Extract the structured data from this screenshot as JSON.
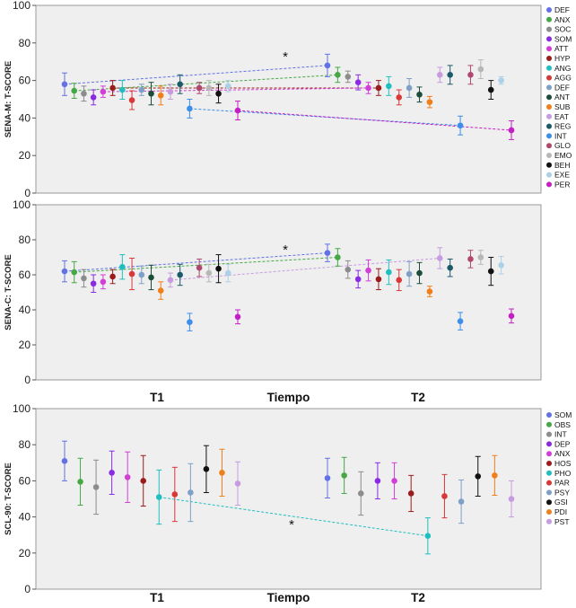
{
  "chart_data": [
    {
      "type": "scatter",
      "ylabel": "SENA-M: T-SCORE",
      "xlabel": "Tiempo",
      "categories": [
        "T1",
        "T2"
      ],
      "ylim": [
        0,
        100
      ],
      "yticks": [
        0,
        20,
        40,
        60,
        80,
        100
      ],
      "annotation": "*",
      "legend": [
        "DEF",
        "ANX",
        "SOC",
        "SOM",
        "ATT",
        "HYP",
        "ANG",
        "AGG",
        "DEF",
        "ANT",
        "SUB",
        "EAT",
        "REG",
        "INT",
        "GLO",
        "EMO",
        "BEH",
        "EXE",
        "PER"
      ],
      "colors": [
        "#6272e6",
        "#45a845",
        "#8c8c8c",
        "#8a2be2",
        "#d23fd6",
        "#9b1c1c",
        "#1fbfbf",
        "#d93838",
        "#7ea0c6",
        "#1c4d3a",
        "#ef7f1a",
        "#c89be0",
        "#1c5a6a",
        "#3d8ee8",
        "#b0476e",
        "#b7b7b7",
        "#111111",
        "#acd0e8",
        "#c41fc4"
      ],
      "t1": [
        {
          "m": 58,
          "e": 6
        },
        {
          "m": 54.5,
          "e": 4
        },
        {
          "m": 53,
          "e": 4
        },
        {
          "m": 51,
          "e": 4
        },
        {
          "m": 54,
          "e": 3
        },
        {
          "m": 56,
          "e": 4
        },
        {
          "m": 55,
          "e": 5
        },
        {
          "m": 49.5,
          "e": 5
        },
        {
          "m": 55,
          "e": 3
        },
        {
          "m": 53,
          "e": 6
        },
        {
          "m": 52,
          "e": 5
        },
        {
          "m": 54,
          "e": 4
        },
        {
          "m": 58,
          "e": 5
        },
        {
          "m": 45,
          "e": 5
        },
        {
          "m": 56,
          "e": 3
        },
        {
          "m": 56,
          "e": 4
        },
        {
          "m": 53,
          "e": 5
        },
        {
          "m": 57,
          "e": 3
        },
        {
          "m": 44,
          "e": 5
        }
      ],
      "t2": [
        {
          "m": 68,
          "e": 6
        },
        {
          "m": 63,
          "e": 4
        },
        {
          "m": 62,
          "e": 3
        },
        {
          "m": 59,
          "e": 4
        },
        {
          "m": 56,
          "e": 3
        },
        {
          "m": 56,
          "e": 4
        },
        {
          "m": 57,
          "e": 5
        },
        {
          "m": 51,
          "e": 4
        },
        {
          "m": 56,
          "e": 5
        },
        {
          "m": 52.5,
          "e": 4
        },
        {
          "m": 48.5,
          "e": 3
        },
        {
          "m": 63,
          "e": 4
        },
        {
          "m": 63,
          "e": 5
        },
        {
          "m": 36,
          "e": 5
        },
        {
          "m": 63,
          "e": 5
        },
        {
          "m": 66,
          "e": 5
        },
        {
          "m": 55,
          "e": 5
        },
        {
          "m": 60,
          "e": 2
        },
        {
          "m": 33.5,
          "e": 5
        }
      ],
      "dashed": [
        0,
        1,
        5,
        4,
        13,
        18
      ]
    },
    {
      "type": "scatter",
      "ylabel": "SENA-C: T-SCORE",
      "xlabel": "Tiempo",
      "categories": [
        "T1",
        "T2"
      ],
      "ylim": [
        0,
        100
      ],
      "yticks": [
        0,
        20,
        40,
        60,
        80,
        100
      ],
      "annotation": "*",
      "colors": [
        "#6272e6",
        "#45a845",
        "#8c8c8c",
        "#8a2be2",
        "#d23fd6",
        "#9b1c1c",
        "#1fbfbf",
        "#d93838",
        "#7ea0c6",
        "#1c4d3a",
        "#ef7f1a",
        "#c89be0",
        "#1c5a6a",
        "#3d8ee8",
        "#b0476e",
        "#b7b7b7",
        "#111111",
        "#acd0e8",
        "#c41fc4"
      ],
      "t1": [
        {
          "m": 62,
          "e": 6
        },
        {
          "m": 61.5,
          "e": 6
        },
        {
          "m": 58,
          "e": 5
        },
        {
          "m": 55,
          "e": 5
        },
        {
          "m": 56,
          "e": 4
        },
        {
          "m": 59,
          "e": 4
        },
        {
          "m": 64.5,
          "e": 7
        },
        {
          "m": 60.5,
          "e": 9
        },
        {
          "m": 60,
          "e": 5
        },
        {
          "m": 58.5,
          "e": 7
        },
        {
          "m": 51,
          "e": 5
        },
        {
          "m": 57,
          "e": 4
        },
        {
          "m": 60,
          "e": 6
        },
        {
          "m": 33,
          "e": 5
        },
        {
          "m": 64,
          "e": 5
        },
        {
          "m": 61,
          "e": 5
        },
        {
          "m": 63.5,
          "e": 8
        },
        {
          "m": 61,
          "e": 5
        },
        {
          "m": 36,
          "e": 4
        }
      ],
      "t2": [
        {
          "m": 72.5,
          "e": 5
        },
        {
          "m": 70,
          "e": 5
        },
        {
          "m": 63,
          "e": 5
        },
        {
          "m": 57.5,
          "e": 5
        },
        {
          "m": 62.5,
          "e": 6
        },
        {
          "m": 57.5,
          "e": 6
        },
        {
          "m": 61.5,
          "e": 7
        },
        {
          "m": 57,
          "e": 6
        },
        {
          "m": 60.5,
          "e": 7
        },
        {
          "m": 61,
          "e": 6
        },
        {
          "m": 50.5,
          "e": 3
        },
        {
          "m": 69.5,
          "e": 6
        },
        {
          "m": 64,
          "e": 5
        },
        {
          "m": 33.5,
          "e": 5
        },
        {
          "m": 69,
          "e": 5
        },
        {
          "m": 70,
          "e": 4
        },
        {
          "m": 62,
          "e": 8
        },
        {
          "m": 65.5,
          "e": 5
        },
        {
          "m": 36.5,
          "e": 4
        }
      ],
      "dashed": [
        0,
        1,
        11
      ]
    },
    {
      "type": "scatter",
      "ylabel": "SCL-90: T-SCORE",
      "xlabel": "Tiempo",
      "categories": [
        "T1",
        "T2"
      ],
      "ylim": [
        0,
        100
      ],
      "yticks": [
        0,
        20,
        40,
        60,
        80,
        100
      ],
      "annotation": "*",
      "legend": [
        "SOM",
        "OBS",
        "INT",
        "DEP",
        "ANX",
        "HOS",
        "PHO",
        "PAR",
        "PSY",
        "GSI",
        "PDI",
        "PST"
      ],
      "colors": [
        "#6272e6",
        "#45a845",
        "#8c8c8c",
        "#8a2be2",
        "#d23fd6",
        "#9b1c1c",
        "#1fbfbf",
        "#d93838",
        "#7ea0c6",
        "#111111",
        "#ef7f1a",
        "#c89be0"
      ],
      "t1": [
        {
          "m": 71,
          "e": 11
        },
        {
          "m": 59.5,
          "e": 13
        },
        {
          "m": 56.5,
          "e": 15
        },
        {
          "m": 64.5,
          "e": 12
        },
        {
          "m": 62,
          "e": 14
        },
        {
          "m": 60,
          "e": 14
        },
        {
          "m": 51,
          "e": 15
        },
        {
          "m": 52.5,
          "e": 15
        },
        {
          "m": 53.5,
          "e": 16
        },
        {
          "m": 66.5,
          "e": 13
        },
        {
          "m": 64.5,
          "e": 13
        },
        {
          "m": 58.5,
          "e": 12
        }
      ],
      "t2": [
        {
          "m": 61.5,
          "e": 11
        },
        {
          "m": 63,
          "e": 10
        },
        {
          "m": 53,
          "e": 12
        },
        {
          "m": 60,
          "e": 10
        },
        {
          "m": 60,
          "e": 10
        },
        {
          "m": 53,
          "e": 10
        },
        {
          "m": 29.5,
          "e": 10
        },
        {
          "m": 51.5,
          "e": 12
        },
        {
          "m": 48.5,
          "e": 12
        },
        {
          "m": 62.5,
          "e": 11
        },
        {
          "m": 63,
          "e": 11
        },
        {
          "m": 50,
          "e": 10
        }
      ],
      "dashed": [
        6
      ]
    }
  ]
}
